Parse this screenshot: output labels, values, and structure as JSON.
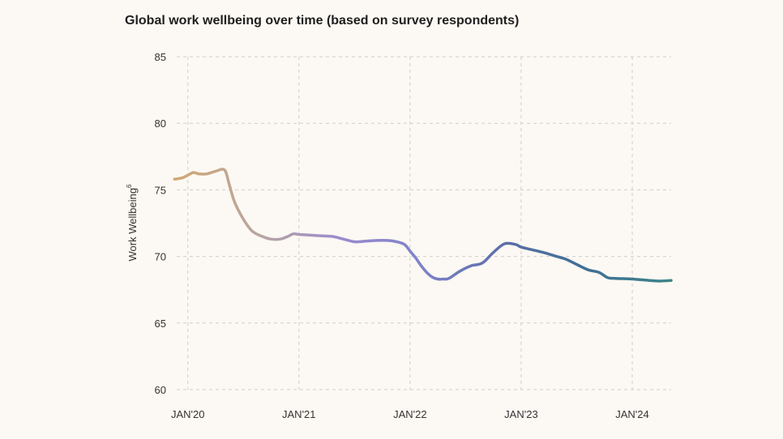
{
  "chart_data": {
    "type": "line",
    "title": "Global work wellbeing over time (based on survey respondents)",
    "xlabel": "",
    "ylabel": "Work Wellbeing",
    "ylabel_superscript": "6",
    "ylim": [
      60,
      85
    ],
    "yticks": [
      60,
      65,
      70,
      75,
      80,
      85
    ],
    "xlim": [
      2019.9,
      2024.35
    ],
    "xticks": [
      {
        "value": 2020,
        "label": "JAN'20"
      },
      {
        "value": 2021,
        "label": "JAN'21"
      },
      {
        "value": 2022,
        "label": "JAN'22"
      },
      {
        "value": 2023,
        "label": "JAN'23"
      },
      {
        "value": 2024,
        "label": "JAN'24"
      }
    ],
    "grid": true,
    "gradient_colors": [
      "#d1a873",
      "#b8a6a0",
      "#9b8bcf",
      "#7d82c9",
      "#5a6fa8",
      "#3f6f95",
      "#3d8588"
    ],
    "series": [
      {
        "name": "Work Wellbeing",
        "x": [
          2019.88,
          2019.95,
          2020.0,
          2020.05,
          2020.1,
          2020.17,
          2020.25,
          2020.33,
          2020.37,
          2020.42,
          2020.5,
          2020.58,
          2020.67,
          2020.75,
          2020.83,
          2020.9,
          2020.95,
          2021.0,
          2021.1,
          2021.2,
          2021.3,
          2021.4,
          2021.5,
          2021.6,
          2021.7,
          2021.8,
          2021.88,
          2021.95,
          2022.0,
          2022.05,
          2022.1,
          2022.15,
          2022.2,
          2022.25,
          2022.3,
          2022.35,
          2022.45,
          2022.55,
          2022.65,
          2022.75,
          2022.85,
          2022.95,
          2023.0,
          2023.1,
          2023.2,
          2023.3,
          2023.4,
          2023.5,
          2023.6,
          2023.7,
          2023.78,
          2023.85,
          2024.0,
          2024.15,
          2024.25,
          2024.35
        ],
        "y": [
          75.8,
          75.9,
          76.1,
          76.3,
          76.2,
          76.2,
          76.4,
          76.5,
          75.5,
          74.1,
          72.8,
          71.9,
          71.5,
          71.3,
          71.3,
          71.5,
          71.7,
          71.65,
          71.6,
          71.55,
          71.5,
          71.3,
          71.1,
          71.15,
          71.2,
          71.2,
          71.1,
          70.9,
          70.4,
          69.9,
          69.3,
          68.8,
          68.45,
          68.3,
          68.3,
          68.35,
          68.9,
          69.3,
          69.5,
          70.3,
          70.95,
          70.9,
          70.7,
          70.5,
          70.3,
          70.05,
          69.8,
          69.4,
          69.0,
          68.8,
          68.4,
          68.35,
          68.3,
          68.2,
          68.15,
          68.2
        ]
      }
    ]
  }
}
